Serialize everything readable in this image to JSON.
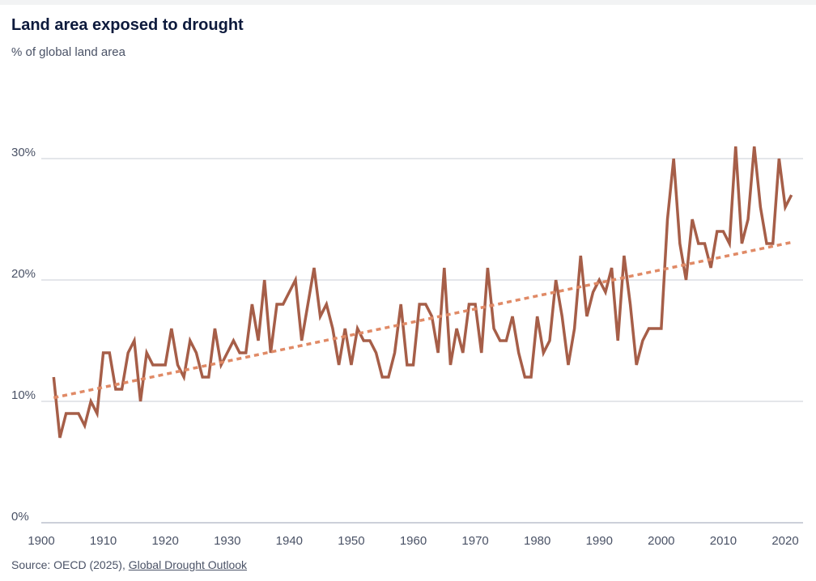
{
  "header": {
    "title": "Land area exposed to drought",
    "subtitle": "% of global land area"
  },
  "footer": {
    "source_prefix": "Source: OECD (2025), ",
    "source_link": "Global Drought Outlook"
  },
  "colors": {
    "series": "#a65e48",
    "trend": "#e08a66",
    "grid": "#c9cdd6",
    "axis_text": "#4a5266"
  },
  "chart_data": {
    "type": "line",
    "title": "Land area exposed to drought",
    "subtitle": "% of global land area",
    "xlabel": "",
    "ylabel": "",
    "xlim": [
      1900,
      2023
    ],
    "ylim": [
      0,
      30
    ],
    "y_ticks": [
      0,
      10,
      20,
      30
    ],
    "y_tick_labels": [
      "0%",
      "10%",
      "20%",
      "30%"
    ],
    "x_ticks": [
      1900,
      1910,
      1920,
      1930,
      1940,
      1950,
      1960,
      1970,
      1980,
      1990,
      2000,
      2010,
      2020
    ],
    "x_tick_labels": [
      "1900",
      "1910",
      "1920",
      "1930",
      "1940",
      "1950",
      "1960",
      "1970",
      "1980",
      "1990",
      "2000",
      "2010",
      "2020"
    ],
    "grid": "horizontal",
    "legend": "none",
    "series": [
      {
        "style": "solid",
        "x": [
          1902,
          1903,
          1904,
          1905,
          1906,
          1907,
          1908,
          1909,
          1910,
          1911,
          1912,
          1913,
          1914,
          1915,
          1916,
          1917,
          1918,
          1919,
          1920,
          1921,
          1922,
          1923,
          1924,
          1925,
          1926,
          1927,
          1928,
          1929,
          1930,
          1931,
          1932,
          1933,
          1934,
          1935,
          1936,
          1937,
          1938,
          1939,
          1940,
          1941,
          1942,
          1943,
          1944,
          1945,
          1946,
          1947,
          1948,
          1949,
          1950,
          1951,
          1952,
          1953,
          1954,
          1955,
          1956,
          1957,
          1958,
          1959,
          1960,
          1961,
          1962,
          1963,
          1964,
          1965,
          1966,
          1967,
          1968,
          1969,
          1970,
          1971,
          1972,
          1973,
          1974,
          1975,
          1976,
          1977,
          1978,
          1979,
          1980,
          1981,
          1982,
          1983,
          1984,
          1985,
          1986,
          1987,
          1988,
          1989,
          1990,
          1991,
          1992,
          1993,
          1994,
          1995,
          1996,
          1997,
          1998,
          1999,
          2000,
          2001,
          2002,
          2003,
          2004,
          2005,
          2006,
          2007,
          2008,
          2009,
          2010,
          2011,
          2012,
          2013,
          2014,
          2015,
          2016,
          2017,
          2018,
          2019,
          2020,
          2021
        ],
        "values": [
          12,
          7,
          9,
          9,
          9,
          8,
          10,
          9,
          14,
          14,
          11,
          11,
          14,
          15,
          10,
          14,
          13,
          13,
          13,
          16,
          13,
          12,
          15,
          14,
          12,
          12,
          16,
          13,
          14,
          15,
          14,
          14,
          18,
          15,
          20,
          14,
          18,
          18,
          19,
          20,
          15,
          18,
          21,
          17,
          18,
          16,
          13,
          16,
          13,
          16,
          15,
          15,
          14,
          12,
          12,
          14,
          18,
          13,
          13,
          18,
          18,
          17,
          14,
          21,
          13,
          16,
          14,
          18,
          18,
          14,
          21,
          16,
          15,
          15,
          17,
          14,
          12,
          12,
          17,
          14,
          15,
          20,
          17,
          13,
          16,
          22,
          17,
          19,
          20,
          19,
          21,
          15,
          22,
          18,
          13,
          15,
          16,
          16,
          16,
          25,
          30,
          23,
          20,
          25,
          23,
          23,
          21,
          24,
          24,
          23,
          31,
          23,
          25,
          31,
          26,
          23,
          23,
          30,
          26,
          27
        ]
      },
      {
        "style": "dashed",
        "x": [
          1902,
          2021
        ],
        "values": [
          10.3,
          23.1
        ]
      }
    ]
  }
}
